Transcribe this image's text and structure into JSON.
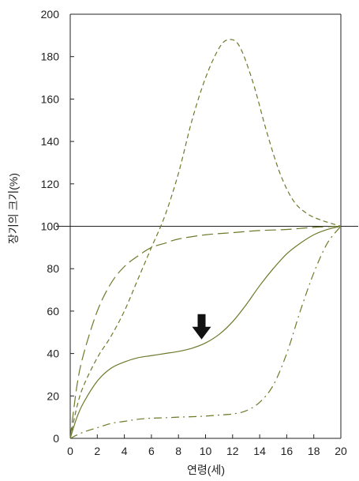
{
  "chart_data": {
    "type": "line",
    "xlabel": "연령(세)",
    "ylabel": "장기의 크기(%)",
    "xlim": [
      0,
      20
    ],
    "ylim": [
      0,
      200
    ],
    "x_ticks": [
      "0",
      "2",
      "4",
      "6",
      "8",
      "10",
      "12",
      "14",
      "16",
      "18",
      "20"
    ],
    "y_ticks": [
      "0",
      "20",
      "40",
      "60",
      "80",
      "100",
      "120",
      "140",
      "160",
      "180",
      "200"
    ],
    "reference_line": 100,
    "grid": false,
    "series_color": "#6b7a2a",
    "series": [
      {
        "style": "long-dash",
        "points": [
          [
            0,
            0
          ],
          [
            0.5,
            25
          ],
          [
            1,
            40
          ],
          [
            2,
            60
          ],
          [
            3,
            73
          ],
          [
            4,
            81
          ],
          [
            5,
            86
          ],
          [
            6,
            90
          ],
          [
            7,
            92
          ],
          [
            8,
            94
          ],
          [
            10,
            96
          ],
          [
            12,
            97
          ],
          [
            14,
            98
          ],
          [
            16,
            98.5
          ],
          [
            18,
            99.5
          ],
          [
            20,
            100
          ]
        ]
      },
      {
        "style": "short-dash",
        "points": [
          [
            0,
            0
          ],
          [
            0.5,
            15
          ],
          [
            1,
            25
          ],
          [
            2,
            38
          ],
          [
            3,
            48
          ],
          [
            4,
            60
          ],
          [
            5,
            75
          ],
          [
            6,
            90
          ],
          [
            7,
            105
          ],
          [
            8,
            125
          ],
          [
            9,
            150
          ],
          [
            10,
            170
          ],
          [
            11,
            184
          ],
          [
            11.7,
            188
          ],
          [
            12.5,
            185
          ],
          [
            13.5,
            168
          ],
          [
            14.5,
            145
          ],
          [
            15.5,
            125
          ],
          [
            16.5,
            112
          ],
          [
            17.5,
            106
          ],
          [
            18.5,
            103
          ],
          [
            20,
            100
          ]
        ]
      },
      {
        "style": "solid",
        "points": [
          [
            0,
            0
          ],
          [
            0.5,
            10
          ],
          [
            1,
            17
          ],
          [
            2,
            27
          ],
          [
            3,
            33
          ],
          [
            4,
            36
          ],
          [
            5,
            38
          ],
          [
            6,
            39
          ],
          [
            7,
            40
          ],
          [
            8,
            41
          ],
          [
            9,
            42.5
          ],
          [
            10,
            45
          ],
          [
            11,
            49
          ],
          [
            12,
            55
          ],
          [
            13,
            63
          ],
          [
            14,
            72
          ],
          [
            15,
            80
          ],
          [
            16,
            87
          ],
          [
            17,
            92
          ],
          [
            18,
            96
          ],
          [
            19,
            98.5
          ],
          [
            20,
            100
          ]
        ]
      },
      {
        "style": "dash-dot",
        "points": [
          [
            0,
            0
          ],
          [
            1,
            3
          ],
          [
            2,
            5
          ],
          [
            3,
            7
          ],
          [
            4,
            8
          ],
          [
            5,
            9
          ],
          [
            6,
            9.5
          ],
          [
            7,
            9.7
          ],
          [
            8,
            10
          ],
          [
            9,
            10.2
          ],
          [
            10,
            10.5
          ],
          [
            11,
            11
          ],
          [
            12,
            11.5
          ],
          [
            13,
            13
          ],
          [
            14,
            17
          ],
          [
            15,
            25
          ],
          [
            16,
            40
          ],
          [
            17,
            60
          ],
          [
            18,
            78
          ],
          [
            19,
            92
          ],
          [
            20,
            100
          ]
        ]
      }
    ],
    "annotations": [
      {
        "type": "arrow-down",
        "x": 10,
        "y": 50,
        "target_series": "solid"
      }
    ]
  }
}
